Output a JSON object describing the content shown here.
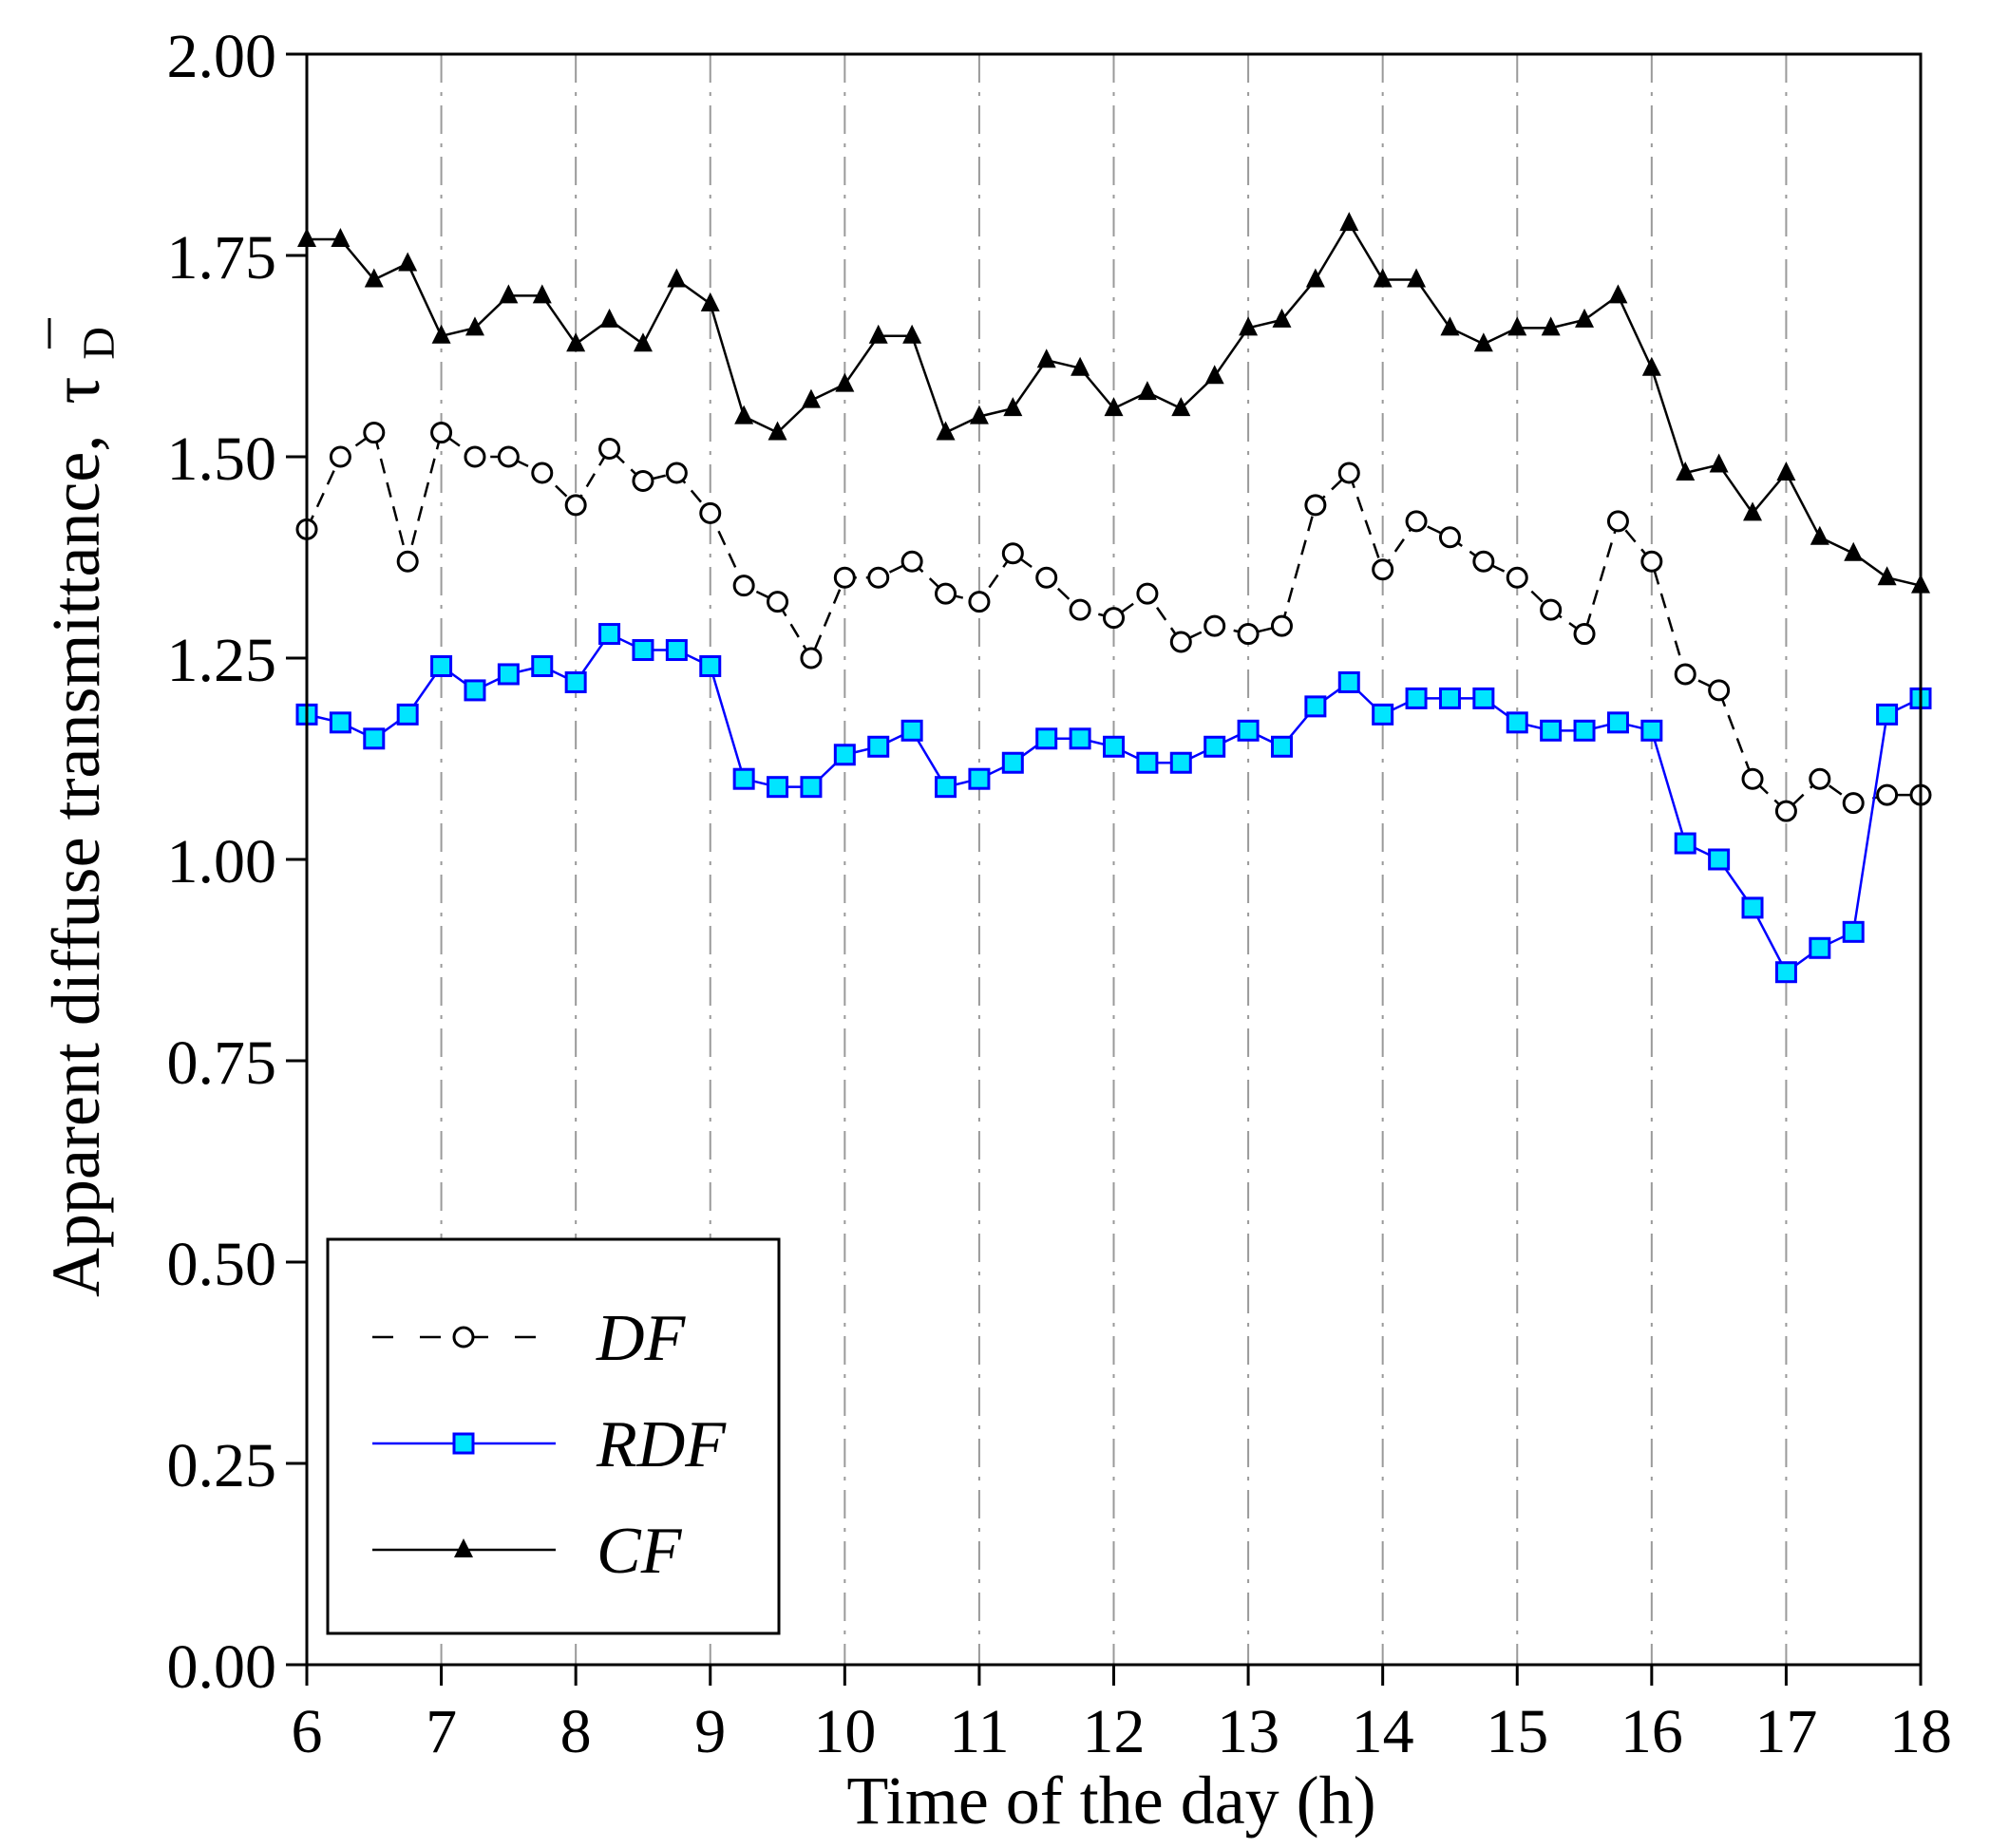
{
  "chart_data": {
    "type": "line",
    "title": "",
    "xlabel": "Time of the day (h)",
    "ylabel": "Apparent diffuse transmittance,",
    "ylabel_symbol": "τ",
    "ylabel_subscript": "D",
    "xlim": [
      6,
      18
    ],
    "ylim": [
      0,
      2
    ],
    "xticks": [
      6,
      7,
      8,
      9,
      10,
      11,
      12,
      13,
      14,
      15,
      16,
      17,
      18
    ],
    "xtick_labels": [
      "6",
      "7",
      "8",
      "9",
      "10",
      "11",
      "12",
      "13",
      "14",
      "15",
      "16",
      "17",
      "18"
    ],
    "yticks": [
      0,
      0.25,
      0.5,
      0.75,
      1.0,
      1.25,
      1.5,
      1.75,
      2.0
    ],
    "ytick_labels": [
      "0.00",
      "0.25",
      "0.50",
      "0.75",
      "1.00",
      "1.25",
      "1.50",
      "1.75",
      "2.00"
    ],
    "grid": "vertical dashed at integer hours",
    "legend_position": "bottom-left",
    "x": [
      6,
      6.25,
      6.5,
      6.75,
      7,
      7.25,
      7.5,
      7.75,
      8,
      8.25,
      8.5,
      8.75,
      9,
      9.25,
      9.5,
      9.75,
      10,
      10.25,
      10.5,
      10.75,
      11,
      11.25,
      11.5,
      11.75,
      12,
      12.25,
      12.5,
      12.75,
      13,
      13.25,
      13.5,
      13.75,
      14,
      14.25,
      14.5,
      14.75,
      15,
      15.25,
      15.5,
      15.75,
      16,
      16.25,
      16.5,
      16.75,
      17,
      17.25,
      17.5,
      17.75,
      18
    ],
    "series": [
      {
        "name": "DF",
        "color": "#000000",
        "marker": "open-circle",
        "line": "dashed",
        "values": [
          1.41,
          1.5,
          1.53,
          1.37,
          1.53,
          1.5,
          1.5,
          1.48,
          1.44,
          1.51,
          1.47,
          1.48,
          1.43,
          1.34,
          1.32,
          1.25,
          1.35,
          1.35,
          1.37,
          1.33,
          1.32,
          1.38,
          1.35,
          1.31,
          1.3,
          1.33,
          1.27,
          1.29,
          1.28,
          1.29,
          1.44,
          1.48,
          1.36,
          1.42,
          1.4,
          1.37,
          1.35,
          1.31,
          1.28,
          1.42,
          1.37,
          1.23,
          1.21,
          1.1,
          1.06,
          1.1,
          1.07,
          1.08,
          1.08
        ]
      },
      {
        "name": "RDF",
        "color": "#0000ff",
        "fill": "#00e5ff",
        "marker": "filled-square",
        "line": "solid",
        "values": [
          1.18,
          1.17,
          1.15,
          1.18,
          1.24,
          1.21,
          1.23,
          1.24,
          1.22,
          1.28,
          1.26,
          1.26,
          1.24,
          1.1,
          1.09,
          1.09,
          1.13,
          1.14,
          1.16,
          1.09,
          1.1,
          1.12,
          1.15,
          1.15,
          1.14,
          1.12,
          1.12,
          1.14,
          1.16,
          1.14,
          1.19,
          1.22,
          1.18,
          1.2,
          1.2,
          1.2,
          1.17,
          1.16,
          1.16,
          1.17,
          1.16,
          1.02,
          1.0,
          0.94,
          0.86,
          0.89,
          0.91,
          1.18,
          1.2
        ]
      },
      {
        "name": "CF",
        "color": "#000000",
        "marker": "filled-triangle",
        "line": "solid",
        "values": [
          1.77,
          1.77,
          1.72,
          1.74,
          1.65,
          1.66,
          1.7,
          1.7,
          1.64,
          1.67,
          1.64,
          1.72,
          1.69,
          1.55,
          1.53,
          1.57,
          1.59,
          1.65,
          1.65,
          1.53,
          1.55,
          1.56,
          1.62,
          1.61,
          1.56,
          1.58,
          1.56,
          1.6,
          1.66,
          1.67,
          1.72,
          1.79,
          1.72,
          1.72,
          1.66,
          1.64,
          1.66,
          1.66,
          1.67,
          1.7,
          1.61,
          1.48,
          1.49,
          1.43,
          1.48,
          1.4,
          1.38,
          1.35,
          1.34
        ]
      }
    ]
  }
}
